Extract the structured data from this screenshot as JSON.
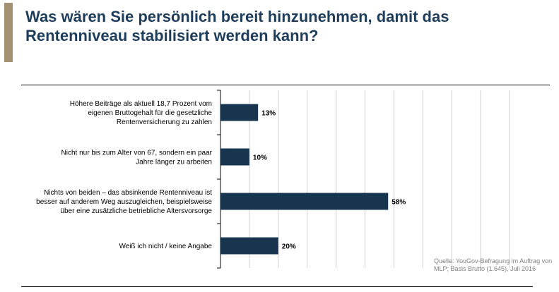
{
  "title": "Was wären Sie persönlich bereit hinzunehmen, damit das\nRentenniveau stabilisiert werden kann?",
  "colors": {
    "accent": "#a39171",
    "title": "#1e3d5a",
    "bar": "#17354f",
    "grid": "#d0d0d0"
  },
  "source": "Quelle: YouGov-Befragung im Auftrag von MLP; Basis Brutto (1.645), Juli 2016",
  "chart_data": {
    "type": "bar",
    "orientation": "horizontal",
    "title": "",
    "xlabel": "",
    "ylabel": "",
    "xlim": [
      0,
      100
    ],
    "grid": true,
    "legend": "none",
    "categories": [
      [
        "Höhere Beiträge als aktuell 18,7 Prozent vom",
        "eigenen Bruttogehalt für die gesetzliche",
        "Rentenversicherung zu zahlen"
      ],
      [
        "Nicht nur bis zum Alter von 67, sondern ein paar",
        "Jahre länger zu arbeiten"
      ],
      [
        "Nichts von beiden – das absinkende Rentenniveau ist",
        "besser auf anderem Weg auszugleichen, beispielsweise",
        "über eine zusätzliche betriebliche Altersvorsorge"
      ],
      [
        "Weiß ich nicht / keine Angabe"
      ]
    ],
    "values": [
      13,
      10,
      58,
      20
    ],
    "data_labels": [
      "13%",
      "10%",
      "58%",
      "20%"
    ]
  }
}
